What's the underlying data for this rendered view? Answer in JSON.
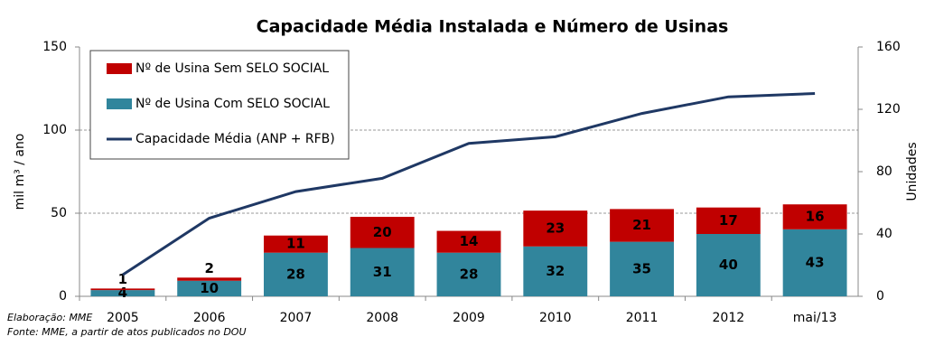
{
  "chart_data": {
    "type": "combo",
    "title": "Capacidade Média Instalada e Número de Usinas",
    "categories": [
      "2005",
      "2006",
      "2007",
      "2008",
      "2009",
      "2010",
      "2011",
      "2012",
      "mai/13"
    ],
    "series": [
      {
        "name": "Nº de Usina Sem SELO SOCIAL",
        "type": "bar",
        "axis": "y2",
        "color": "#c00000",
        "values": [
          1,
          2,
          11,
          20,
          14,
          23,
          21,
          17,
          16
        ]
      },
      {
        "name": "Nº de Usina Com SELO SOCIAL",
        "type": "bar",
        "axis": "y2",
        "color": "#31859c",
        "values": [
          4,
          10,
          28,
          31,
          28,
          32,
          35,
          40,
          43
        ]
      },
      {
        "name": "Capacidade Média (ANP + RFB)",
        "type": "line",
        "axis": "y",
        "color": "#1f3864",
        "values": [
          13,
          47,
          63,
          71,
          92,
          96,
          110,
          120,
          122
        ]
      }
    ],
    "ylabel": "mil m³ / ano",
    "y2label": "Unidades",
    "ylim": [
      0,
      150
    ],
    "yticks": [
      0,
      50,
      100,
      150
    ],
    "y2lim": [
      0,
      160
    ],
    "y2ticks": [
      0,
      40,
      80,
      120,
      160
    ],
    "grid": true,
    "legend": "upper left",
    "annotations": [
      "Elaboração: MME",
      "Fonte: MME, a partir de atos publicados no DOU"
    ]
  }
}
